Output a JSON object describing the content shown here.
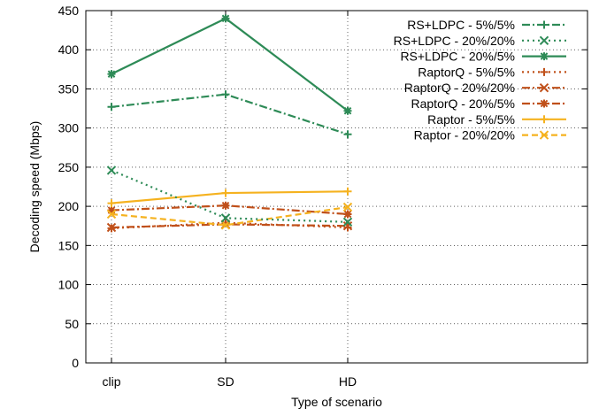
{
  "chart_data": {
    "type": "line",
    "title": "",
    "xlabel": "Type of scenario",
    "ylabel": "Decoding speed (Mbps)",
    "categories": [
      "clip",
      "SD",
      "HD"
    ],
    "ylim": [
      0,
      450
    ],
    "yticks": [
      0,
      50,
      100,
      150,
      200,
      250,
      300,
      350,
      400,
      450
    ],
    "grid": "dotted",
    "legend_position": "top-right",
    "series": [
      {
        "name": "RS+LDPC - 5%/5%",
        "values": [
          327,
          343,
          292
        ],
        "color": "#2e8b57",
        "dash": "dash-dot",
        "marker": "plus"
      },
      {
        "name": "RS+LDPC - 20%/20%",
        "values": [
          246,
          185,
          180
        ],
        "color": "#2e8b57",
        "dash": "dotted",
        "marker": "cross"
      },
      {
        "name": "RS+LDPC - 20%/5%",
        "values": [
          369,
          440,
          322
        ],
        "color": "#2e8b57",
        "dash": "solid",
        "marker": "asterisk"
      },
      {
        "name": "RaptorQ - 5%/5%",
        "values": [
          172,
          179,
          173
        ],
        "color": "#c0501a",
        "dash": "dotted",
        "marker": "plus"
      },
      {
        "name": "RaptorQ - 20%/20%",
        "values": [
          173,
          177,
          175
        ],
        "color": "#c0501a",
        "dash": "dash-dot",
        "marker": "cross"
      },
      {
        "name": "RaptorQ - 20%/5%",
        "values": [
          195,
          201,
          190
        ],
        "color": "#c0501a",
        "dash": "dash-dot",
        "marker": "asterisk"
      },
      {
        "name": "Raptor - 5%/5%",
        "values": [
          204,
          217,
          219
        ],
        "color": "#f5b21f",
        "dash": "solid",
        "marker": "plus"
      },
      {
        "name": "Raptor - 20%/20%",
        "values": [
          190,
          176,
          199
        ],
        "color": "#f5b21f",
        "dash": "dashed",
        "marker": "cross"
      }
    ]
  }
}
